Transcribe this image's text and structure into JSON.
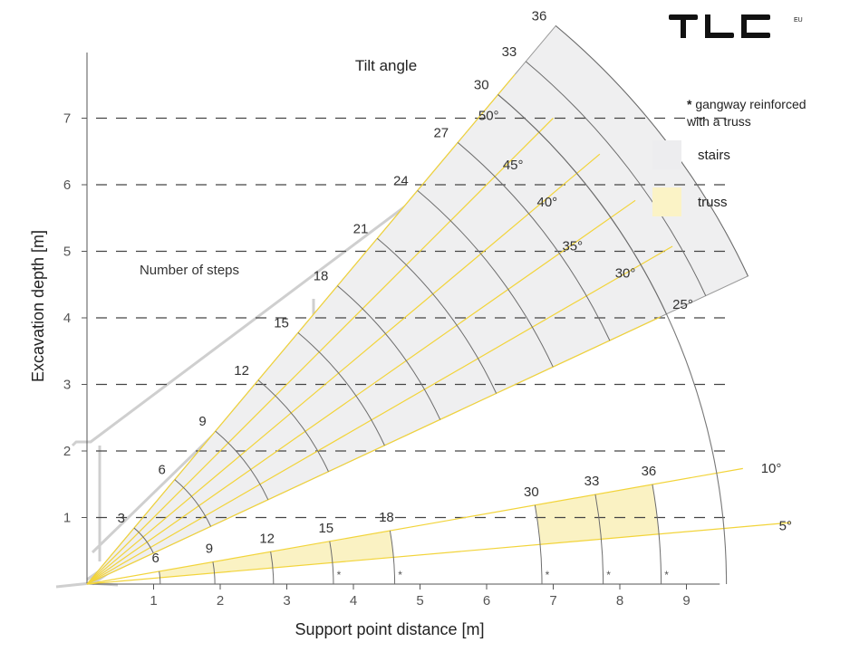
{
  "brand": {
    "logo_text": "TLC",
    "logo_suffix": "EU"
  },
  "chart_data": {
    "type": "polar-sector",
    "title": "Tilt angle",
    "steps_label": "Number of steps",
    "xlabel": "Support point distance [m]",
    "ylabel": "Excavation depth [m]",
    "xlim": [
      0,
      9.5
    ],
    "ylim": [
      0,
      7.5
    ],
    "x_ticks": [
      1,
      2,
      3,
      4,
      5,
      6,
      7,
      8,
      9
    ],
    "y_ticks": [
      1,
      2,
      3,
      4,
      5,
      6,
      7
    ],
    "angles": [
      5,
      10,
      25,
      30,
      35,
      40,
      45,
      50
    ],
    "angle_labels": [
      "5°",
      "10°",
      "25°",
      "30°",
      "35°",
      "40°",
      "45°",
      "50°"
    ],
    "colors": {
      "stairs_fill": "#efeff0",
      "truss_fill": "#faf2c3",
      "ray": "#f2d43a",
      "arc": "#6d6d6d",
      "grid": "#444444"
    },
    "steps_series": {
      "name": "stairs",
      "angle_range": [
        25,
        50
      ],
      "steps": [
        3,
        6,
        9,
        12,
        15,
        18,
        21,
        24,
        27,
        30,
        33,
        36
      ],
      "step_labels": [
        "3",
        "6",
        "9",
        "12",
        "15",
        "18",
        "21",
        "24",
        "27",
        "30",
        "33",
        "36"
      ],
      "radius_m": [
        1.1,
        2.05,
        3.0,
        4.0,
        4.93,
        5.85,
        6.78,
        7.72,
        8.66,
        9.6,
        10.25,
        10.95
      ]
    },
    "truss_series": [
      {
        "name": "truss",
        "angle_range": [
          5,
          10
        ],
        "steps": [
          6,
          9,
          12,
          15,
          18
        ],
        "step_labels": [
          "6",
          "9",
          "12",
          "15",
          "18"
        ],
        "radius_m": [
          1.1,
          1.92,
          2.8,
          3.7,
          4.62
        ],
        "reinforced_marks": [
          false,
          false,
          false,
          true,
          true
        ]
      },
      {
        "name": "truss",
        "angle_range": [
          5,
          10
        ],
        "steps": [
          30,
          33,
          36
        ],
        "step_labels": [
          "30",
          "33",
          "36"
        ],
        "radius_m": [
          6.83,
          7.75,
          8.62
        ],
        "reinforced_marks": [
          true,
          true,
          true
        ]
      }
    ],
    "star_mark": "*",
    "legend": {
      "note_star": "*",
      "note_text": "gangway reinforced\n with a truss",
      "items": [
        {
          "label": "stairs",
          "color": "#ededef"
        },
        {
          "label": "truss",
          "color": "#fbf3c6"
        }
      ]
    }
  }
}
